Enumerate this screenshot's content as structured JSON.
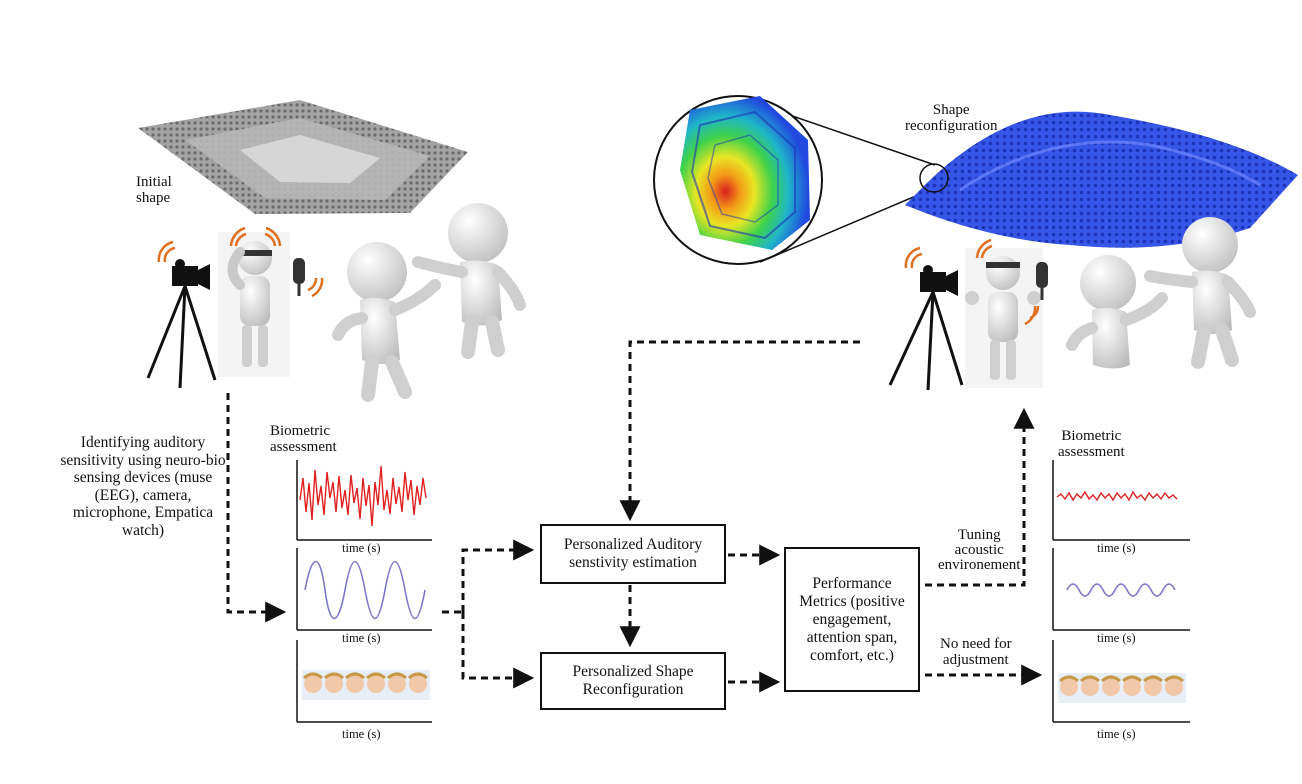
{
  "top_left": {
    "initial_shape_label": "Initial\nshape"
  },
  "top_right": {
    "shape_reconfig_label": "Shape\nreconfiguration"
  },
  "left_description": "Identifying auditory sensitivity using neuro-bio sensing devices (muse (EEG), camera, microphone, Empatica watch)",
  "left_signals": {
    "title": "Biometric\nassessment",
    "xlabels": [
      "time (s)",
      "time (s)",
      "time (s)"
    ]
  },
  "right_signals": {
    "title": "Biometric\nassessment",
    "xlabels": [
      "time (s)",
      "time (s)",
      "time (s)"
    ]
  },
  "boxes": {
    "auditory_estimation": "Personalized Auditory senstivity estimation",
    "shape_reconfiguration": "Personalized Shape Reconfiguration",
    "performance_metrics": "Performance Metrics (positive engagement, attention span, comfort, etc.)"
  },
  "arrow_labels": {
    "tuning": "Tuning\nacoustic\nenvironement",
    "no_need": "No need for\nadjustment"
  },
  "colors": {
    "eeg_signal": "#e02020",
    "wave_signal": "#7b78c8",
    "fea_blue": "#2a48e0",
    "mesh_gray": "#8a8a8a"
  }
}
